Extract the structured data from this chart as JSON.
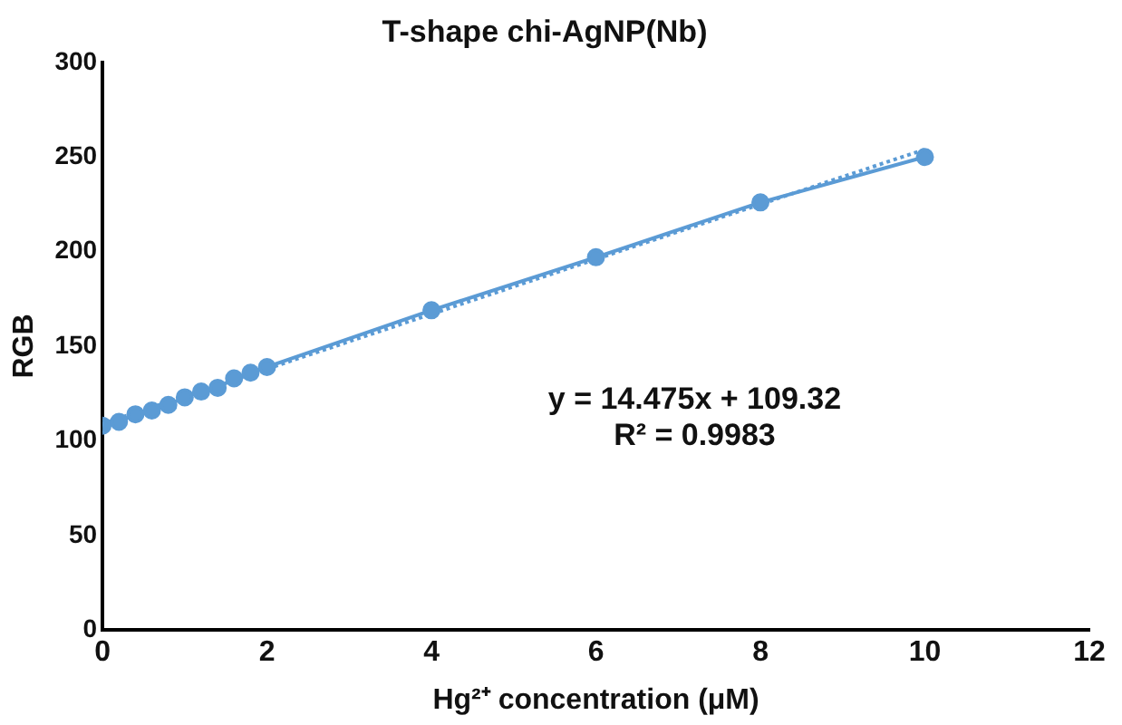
{
  "chart_data": {
    "type": "scatter",
    "title": "T-shape chi-AgNP(Nb)",
    "xlabel": "Hg²⁺ concentration (μM)",
    "ylabel": "RGB",
    "series": [
      {
        "type": "line",
        "color": "#5b9bd5",
        "marker": "circle",
        "line_style": "solid",
        "x": [
          0,
          0.2,
          0.4,
          0.6,
          0.8,
          1.0,
          1.2,
          1.4,
          1.6,
          1.8,
          2.0,
          4,
          6,
          8,
          10
        ],
        "values": [
          108,
          110,
          114,
          116,
          119,
          123,
          126,
          128,
          133,
          136,
          139,
          169,
          197,
          226,
          250
        ]
      },
      {
        "type": "line",
        "color": "#5b9bd5",
        "marker": "none",
        "line_style": "dotted",
        "x": [
          0,
          10
        ],
        "values": [
          109,
          254
        ]
      }
    ],
    "annotations": [
      "y = 14.475x + 109.32",
      "R² = 0.9983"
    ],
    "xlim": [
      0,
      12
    ],
    "xticks": [
      0,
      2,
      4,
      6,
      8,
      10,
      12
    ],
    "ylim": [
      0,
      300
    ],
    "yticks": [
      0,
      50,
      100,
      150,
      200,
      250,
      300
    ],
    "grid": false,
    "legend": false
  }
}
